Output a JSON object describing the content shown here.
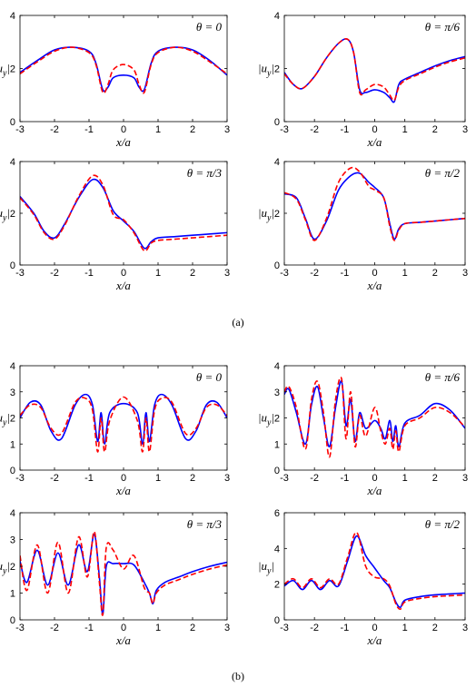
{
  "colors": {
    "solid": "#0000ff",
    "dashed": "#ff0000",
    "axis": "#000000"
  },
  "captions": {
    "a": "(a)",
    "b": "(b)"
  },
  "chart_data": [
    {
      "type": "line",
      "group": "a",
      "title": "θ = 0",
      "xlabel": "x/a",
      "ylabel": "|u_y|",
      "xlim": [
        -3,
        3
      ],
      "ylim": [
        0,
        4
      ],
      "xticks": [
        -3,
        -2,
        -1,
        0,
        1,
        2,
        3
      ],
      "yticks": [
        0,
        2,
        4
      ],
      "grid": false,
      "series": [
        {
          "style": "solid",
          "x": [
            -3,
            -2.5,
            -2,
            -1.5,
            -1,
            -0.8,
            -0.6,
            -0.45,
            -0.3,
            0,
            0.3,
            0.45,
            0.6,
            0.8,
            1,
            1.5,
            2,
            2.5,
            3
          ],
          "y": [
            1.85,
            2.3,
            2.7,
            2.8,
            2.65,
            2.2,
            1.2,
            1.3,
            1.65,
            1.75,
            1.65,
            1.3,
            1.2,
            2.2,
            2.65,
            2.8,
            2.7,
            2.3,
            1.75
          ]
        },
        {
          "style": "dashed",
          "x": [
            -3,
            -2.5,
            -2,
            -1.5,
            -1,
            -0.8,
            -0.6,
            -0.45,
            -0.3,
            0,
            0.3,
            0.45,
            0.6,
            0.8,
            1,
            1.5,
            2,
            2.5,
            3
          ],
          "y": [
            1.8,
            2.25,
            2.65,
            2.8,
            2.6,
            2.15,
            1.1,
            1.4,
            1.95,
            2.15,
            1.95,
            1.4,
            1.1,
            2.15,
            2.6,
            2.8,
            2.65,
            2.25,
            1.8
          ]
        }
      ]
    },
    {
      "type": "line",
      "group": "a",
      "title": "θ = π/6",
      "xlabel": "x/a",
      "ylabel": "|u_y|",
      "xlim": [
        -3,
        3
      ],
      "ylim": [
        0,
        4
      ],
      "xticks": [
        -3,
        -2,
        -1,
        0,
        1,
        2,
        3
      ],
      "yticks": [
        0,
        2,
        4
      ],
      "grid": false,
      "series": [
        {
          "style": "solid",
          "x": [
            -3,
            -2.7,
            -2.4,
            -2,
            -1.6,
            -1.2,
            -0.9,
            -0.7,
            -0.5,
            -0.3,
            0,
            0.3,
            0.5,
            0.65,
            0.8,
            1,
            1.5,
            2,
            2.5,
            3
          ],
          "y": [
            1.85,
            1.4,
            1.25,
            1.7,
            2.4,
            2.95,
            3.1,
            2.6,
            1.2,
            1.1,
            1.2,
            1.1,
            0.9,
            0.75,
            1.4,
            1.6,
            1.85,
            2.1,
            2.3,
            2.45
          ]
        },
        {
          "style": "dashed",
          "x": [
            -3,
            -2.7,
            -2.4,
            -2,
            -1.6,
            -1.2,
            -0.9,
            -0.7,
            -0.5,
            -0.3,
            0,
            0.3,
            0.5,
            0.65,
            0.8,
            1,
            1.5,
            2,
            2.5,
            3
          ],
          "y": [
            1.8,
            1.4,
            1.25,
            1.7,
            2.4,
            2.95,
            3.1,
            2.6,
            1.1,
            1.2,
            1.4,
            1.3,
            1.0,
            0.8,
            1.3,
            1.55,
            1.8,
            2.05,
            2.25,
            2.4
          ]
        }
      ]
    },
    {
      "type": "line",
      "group": "a",
      "title": "θ = π/3",
      "xlabel": "x/a",
      "ylabel": "|u_y|",
      "xlim": [
        -3,
        3
      ],
      "ylim": [
        0,
        4
      ],
      "xticks": [
        -3,
        -2,
        -1,
        0,
        1,
        2,
        3
      ],
      "yticks": [
        0,
        2,
        4
      ],
      "grid": false,
      "series": [
        {
          "style": "solid",
          "x": [
            -3,
            -2.6,
            -2.3,
            -2,
            -1.7,
            -1.3,
            -0.9,
            -0.6,
            -0.3,
            0,
            0.3,
            0.6,
            0.8,
            1,
            1.5,
            2,
            2.5,
            3
          ],
          "y": [
            2.65,
            2.0,
            1.3,
            1.05,
            1.6,
            2.6,
            3.3,
            3.0,
            2.1,
            1.7,
            1.3,
            0.65,
            0.9,
            1.05,
            1.1,
            1.15,
            1.2,
            1.25
          ]
        },
        {
          "style": "dashed",
          "x": [
            -3,
            -2.6,
            -2.3,
            -2,
            -1.7,
            -1.3,
            -0.9,
            -0.6,
            -0.3,
            0,
            0.3,
            0.6,
            0.8,
            1,
            1.5,
            2,
            2.5,
            3
          ],
          "y": [
            2.6,
            1.95,
            1.25,
            1.0,
            1.55,
            2.65,
            3.45,
            3.1,
            1.95,
            1.75,
            1.25,
            0.55,
            0.85,
            0.95,
            1.0,
            1.05,
            1.1,
            1.15
          ]
        }
      ]
    },
    {
      "type": "line",
      "group": "a",
      "title": "θ = π/2",
      "xlabel": "x/a",
      "ylabel": "|u_y|",
      "xlim": [
        -3,
        3
      ],
      "ylim": [
        0,
        4
      ],
      "xticks": [
        -3,
        -2,
        -1,
        0,
        1,
        2,
        3
      ],
      "yticks": [
        0,
        2,
        4
      ],
      "grid": false,
      "series": [
        {
          "style": "solid",
          "x": [
            -3,
            -2.6,
            -2.3,
            -2,
            -1.6,
            -1.2,
            -0.8,
            -0.5,
            -0.2,
            0,
            0.3,
            0.5,
            0.65,
            0.8,
            1,
            1.5,
            2,
            2.5,
            3
          ],
          "y": [
            2.75,
            2.6,
            1.8,
            1.0,
            1.7,
            2.9,
            3.45,
            3.55,
            3.2,
            3.0,
            2.6,
            1.6,
            1.0,
            1.4,
            1.6,
            1.65,
            1.7,
            1.75,
            1.8
          ]
        },
        {
          "style": "dashed",
          "x": [
            -3,
            -2.6,
            -2.3,
            -2,
            -1.6,
            -1.2,
            -0.8,
            -0.5,
            -0.2,
            0,
            0.3,
            0.5,
            0.65,
            0.8,
            1,
            1.5,
            2,
            2.5,
            3
          ],
          "y": [
            2.8,
            2.55,
            1.75,
            0.95,
            1.8,
            3.2,
            3.75,
            3.6,
            3.05,
            2.9,
            2.6,
            1.5,
            0.95,
            1.35,
            1.6,
            1.65,
            1.7,
            1.75,
            1.8
          ]
        }
      ]
    },
    {
      "type": "line",
      "group": "b",
      "title": "θ = 0",
      "xlabel": "x/a",
      "ylabel": "|u_y|",
      "xlim": [
        -3,
        3
      ],
      "ylim": [
        0,
        4
      ],
      "xticks": [
        -3,
        -2,
        -1,
        0,
        1,
        2,
        3
      ],
      "yticks": [
        0,
        1,
        2,
        3,
        4
      ],
      "grid": false,
      "series": [
        {
          "style": "solid",
          "x": [
            -3,
            -2.7,
            -2.4,
            -2.1,
            -1.8,
            -1.4,
            -1.1,
            -0.9,
            -0.75,
            -0.65,
            -0.55,
            -0.4,
            0,
            0.4,
            0.55,
            0.65,
            0.75,
            0.9,
            1.1,
            1.4,
            1.8,
            2.1,
            2.4,
            2.7,
            3
          ],
          "y": [
            2.0,
            2.6,
            2.5,
            1.5,
            1.2,
            2.5,
            2.9,
            2.5,
            1.1,
            2.2,
            1.0,
            2.2,
            2.55,
            2.2,
            1.0,
            2.2,
            1.1,
            2.5,
            2.9,
            2.5,
            1.2,
            1.5,
            2.5,
            2.6,
            2.0
          ]
        },
        {
          "style": "dashed",
          "x": [
            -3,
            -2.7,
            -2.4,
            -2.1,
            -1.8,
            -1.4,
            -1.1,
            -0.9,
            -0.75,
            -0.65,
            -0.55,
            -0.4,
            0,
            0.4,
            0.55,
            0.65,
            0.75,
            0.9,
            1.1,
            1.4,
            1.8,
            2.1,
            2.4,
            2.7,
            3
          ],
          "y": [
            2.1,
            2.5,
            2.4,
            1.6,
            1.4,
            2.6,
            2.75,
            2.3,
            0.7,
            2.0,
            0.7,
            1.9,
            2.8,
            1.9,
            0.7,
            2.0,
            0.7,
            2.3,
            2.75,
            2.6,
            1.4,
            1.6,
            2.4,
            2.5,
            2.1
          ]
        }
      ]
    },
    {
      "type": "line",
      "group": "b",
      "title": "θ = π/6",
      "xlabel": "x/a",
      "ylabel": "|u_y|",
      "xlim": [
        -3,
        3
      ],
      "ylim": [
        0,
        4
      ],
      "xticks": [
        -3,
        -2,
        -1,
        0,
        1,
        2,
        3
      ],
      "yticks": [
        0,
        1,
        2,
        3,
        4
      ],
      "grid": false,
      "series": [
        {
          "style": "solid",
          "x": [
            -3,
            -2.85,
            -2.6,
            -2.3,
            -2.1,
            -1.9,
            -1.7,
            -1.5,
            -1.3,
            -1.1,
            -0.95,
            -0.8,
            -0.65,
            -0.5,
            -0.3,
            0,
            0.2,
            0.35,
            0.5,
            0.6,
            0.7,
            0.8,
            1,
            1.5,
            2,
            2.5,
            3
          ],
          "y": [
            2.9,
            3.1,
            2.2,
            1.0,
            2.5,
            3.2,
            2.0,
            0.9,
            2.4,
            3.4,
            1.7,
            2.7,
            1.1,
            2.2,
            1.6,
            1.9,
            1.6,
            1.2,
            1.9,
            1.1,
            1.7,
            0.9,
            1.8,
            2.1,
            2.55,
            2.3,
            1.6
          ]
        },
        {
          "style": "dashed",
          "x": [
            -3,
            -2.85,
            -2.6,
            -2.3,
            -2.1,
            -1.9,
            -1.7,
            -1.5,
            -1.3,
            -1.1,
            -0.95,
            -0.8,
            -0.65,
            -0.5,
            -0.3,
            0,
            0.2,
            0.35,
            0.5,
            0.6,
            0.7,
            0.8,
            1,
            1.5,
            2,
            2.5,
            3
          ],
          "y": [
            3.0,
            3.2,
            2.4,
            0.8,
            2.7,
            3.4,
            2.2,
            0.5,
            2.7,
            3.5,
            1.2,
            3.0,
            0.9,
            2.1,
            1.3,
            2.4,
            1.5,
            1.0,
            1.6,
            0.8,
            1.5,
            0.7,
            1.7,
            2.0,
            2.4,
            2.2,
            1.65
          ]
        }
      ]
    },
    {
      "type": "line",
      "group": "b",
      "title": "θ = π/3",
      "xlabel": "x/a",
      "ylabel": "|u_y|",
      "xlim": [
        -3,
        3
      ],
      "ylim": [
        0,
        4
      ],
      "xticks": [
        -3,
        -2,
        -1,
        0,
        1,
        2,
        3
      ],
      "yticks": [
        0,
        1,
        2,
        3,
        4
      ],
      "grid": false,
      "series": [
        {
          "style": "solid",
          "x": [
            -3,
            -2.8,
            -2.5,
            -2.2,
            -1.9,
            -1.6,
            -1.3,
            -1.05,
            -0.85,
            -0.7,
            -0.6,
            -0.5,
            -0.3,
            0,
            0.3,
            0.6,
            0.75,
            0.85,
            0.95,
            1.2,
            1.6,
            2,
            2.5,
            3
          ],
          "y": [
            2.2,
            1.4,
            2.6,
            1.3,
            2.5,
            1.3,
            2.8,
            1.8,
            3.2,
            1.6,
            0.2,
            2.0,
            2.1,
            2.1,
            2.05,
            1.4,
            1.0,
            0.6,
            1.1,
            1.4,
            1.6,
            1.8,
            2.0,
            2.15
          ]
        },
        {
          "style": "dashed",
          "x": [
            -3,
            -2.8,
            -2.5,
            -2.2,
            -1.9,
            -1.6,
            -1.3,
            -1.05,
            -0.85,
            -0.7,
            -0.6,
            -0.5,
            -0.3,
            0,
            0.3,
            0.6,
            0.75,
            0.85,
            0.95,
            1.2,
            1.6,
            2,
            2.5,
            3
          ],
          "y": [
            2.4,
            1.1,
            2.8,
            1.0,
            2.9,
            1.0,
            3.1,
            1.6,
            3.3,
            1.4,
            0.2,
            2.7,
            2.6,
            1.9,
            2.4,
            1.2,
            1.0,
            0.6,
            1.0,
            1.3,
            1.5,
            1.7,
            1.9,
            2.05
          ]
        }
      ]
    },
    {
      "type": "line",
      "group": "b",
      "title": "θ = π/2",
      "xlabel": "x/a",
      "ylabel": "|u_y|",
      "xlim": [
        -3,
        3
      ],
      "ylim": [
        0,
        6
      ],
      "xticks": [
        -3,
        -2,
        -1,
        0,
        1,
        2,
        3
      ],
      "yticks": [
        0,
        2,
        4,
        6
      ],
      "grid": false,
      "series": [
        {
          "style": "solid",
          "x": [
            -3,
            -2.7,
            -2.4,
            -2.1,
            -1.8,
            -1.5,
            -1.2,
            -0.9,
            -0.6,
            -0.3,
            0,
            0.3,
            0.5,
            0.7,
            0.85,
            1,
            1.5,
            2,
            2.5,
            3
          ],
          "y": [
            1.9,
            2.2,
            1.7,
            2.2,
            1.7,
            2.2,
            1.9,
            3.3,
            4.7,
            3.6,
            2.9,
            2.2,
            1.8,
            1.0,
            0.7,
            1.1,
            1.3,
            1.4,
            1.45,
            1.5
          ]
        },
        {
          "style": "dashed",
          "x": [
            -3,
            -2.7,
            -2.4,
            -2.1,
            -1.8,
            -1.5,
            -1.2,
            -0.9,
            -0.6,
            -0.3,
            0,
            0.3,
            0.5,
            0.7,
            0.85,
            1,
            1.5,
            2,
            2.5,
            3
          ],
          "y": [
            2.0,
            2.3,
            1.8,
            2.3,
            1.8,
            2.3,
            2.0,
            3.5,
            4.9,
            3.0,
            2.4,
            2.3,
            1.9,
            0.9,
            0.6,
            1.0,
            1.2,
            1.3,
            1.35,
            1.4
          ]
        }
      ]
    }
  ]
}
